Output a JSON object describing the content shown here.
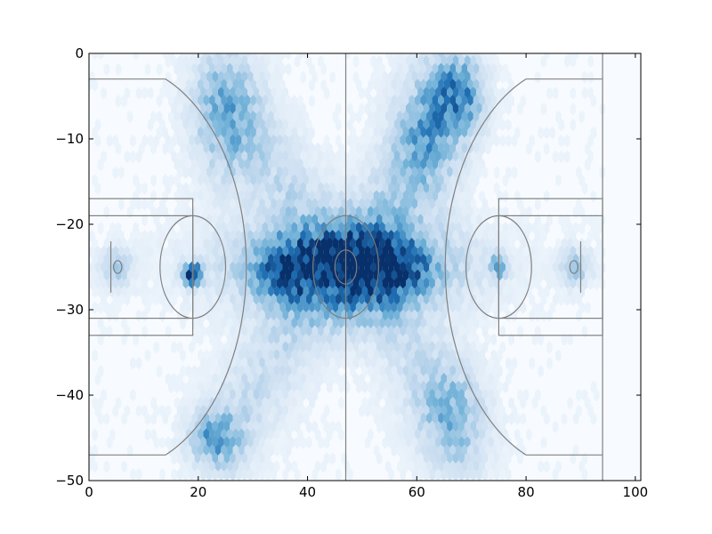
{
  "chart_data": {
    "type": "heatmap",
    "title": "",
    "xlabel": "",
    "ylabel": "",
    "xlim": [
      0,
      101
    ],
    "ylim": [
      -50,
      0
    ],
    "x_ticks": [
      0,
      20,
      40,
      60,
      80,
      100
    ],
    "y_ticks": [
      0,
      -10,
      -20,
      -30,
      -40,
      -50
    ],
    "x_tick_labels": [
      "0",
      "20",
      "40",
      "60",
      "80",
      "100"
    ],
    "y_tick_labels": [
      "0",
      "−10",
      "−20",
      "−30",
      "−40",
      "−50"
    ],
    "grid": false,
    "legend": "none",
    "colormap": [
      "#f7fbff",
      "#c6dbef",
      "#6baed6",
      "#2171b5",
      "#08306b"
    ],
    "court_line_color": "#808080",
    "density_regions": [
      {
        "x": 47,
        "y": -25,
        "sx": 14,
        "sy": 3.5,
        "w": 0.55
      },
      {
        "x": 36,
        "y": -25.5,
        "sx": 4,
        "sy": 2.5,
        "w": 0.45
      },
      {
        "x": 57,
        "y": -25,
        "sx": 4,
        "sy": 2.5,
        "w": 0.45
      },
      {
        "x": 19,
        "y": -26,
        "sx": 1.2,
        "sy": 0.8,
        "w": 1.0
      },
      {
        "x": 75,
        "y": -25,
        "sx": 1.0,
        "sy": 0.8,
        "w": 0.7
      },
      {
        "x": 23,
        "y": -45,
        "sx": 3,
        "sy": 2,
        "w": 0.4
      },
      {
        "x": 25,
        "y": -8,
        "sx": 4,
        "sy": 5,
        "w": 0.3
      },
      {
        "x": 68,
        "y": -5,
        "sx": 3,
        "sy": 3,
        "w": 0.45
      },
      {
        "x": 62,
        "y": -10,
        "sx": 4,
        "sy": 5,
        "w": 0.3
      },
      {
        "x": 66,
        "y": -42,
        "sx": 4,
        "sy": 4,
        "w": 0.25
      },
      {
        "x": 5,
        "y": -25,
        "sx": 2,
        "sy": 1.5,
        "w": 0.3
      },
      {
        "x": 89,
        "y": -25,
        "sx": 2,
        "sy": 1.5,
        "w": 0.3
      }
    ]
  }
}
